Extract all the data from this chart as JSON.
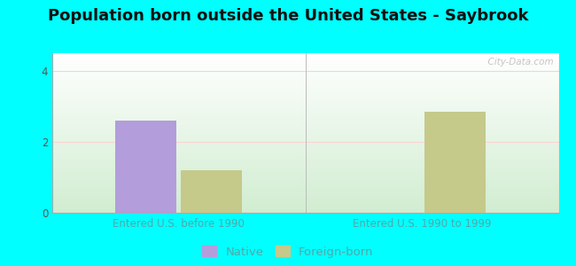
{
  "title": "Population born outside the United States - Saybrook",
  "background_color": "#00FFFF",
  "categories": [
    "Entered U.S. before 1990",
    "Entered U.S. 1990 to 1999"
  ],
  "native_values": [
    2.6,
    0
  ],
  "foreign_born_values": [
    1.2,
    2.85
  ],
  "native_color": "#b39ddb",
  "foreign_born_color": "#c5c98a",
  "ylim": [
    0,
    4.5
  ],
  "yticks": [
    0,
    2,
    4
  ],
  "bar_width": 0.12,
  "xlabel_color": "#4daaaa",
  "title_fontsize": 13,
  "tick_fontsize": 8.5,
  "legend_fontsize": 9.5,
  "watermark": "  City-Data.com",
  "grid_color_4": "#dddddd",
  "grid_color_2": "#ffcccc",
  "grid_color_0": "#aaaaaa",
  "separator_color": "#bbbbbb"
}
